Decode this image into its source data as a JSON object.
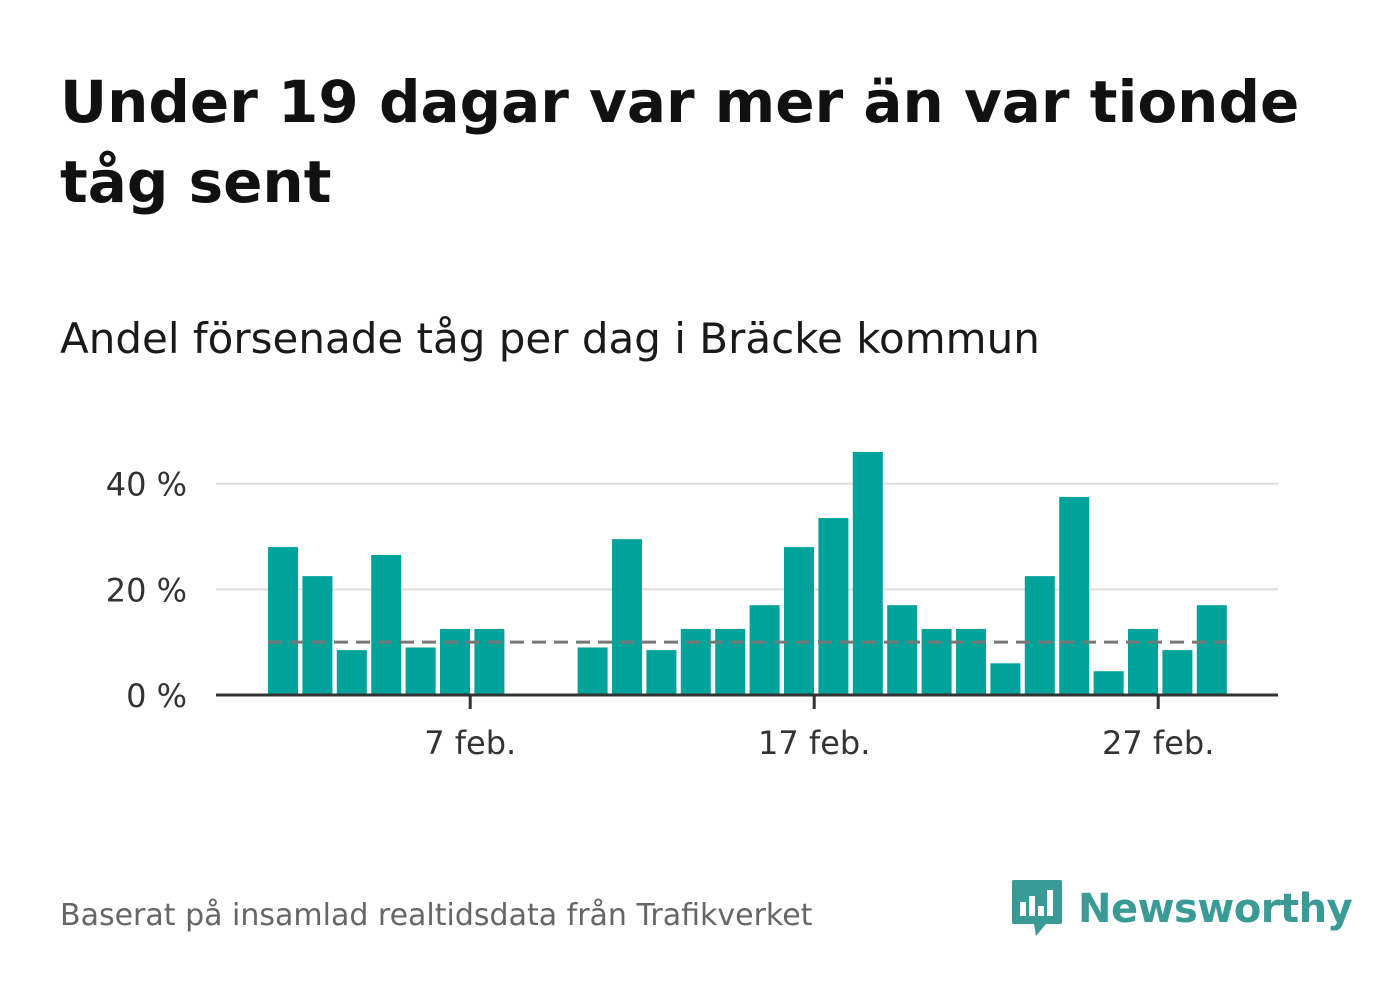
{
  "header": {
    "title": "Under 19 dagar var mer än var tionde tåg sent",
    "subtitle": "Andel försenade tåg per dag i Bräcke kommun"
  },
  "footer": {
    "source": "Baserat på insamlad realtidsdata från Trafikverket",
    "brand": "Newsworthy"
  },
  "colors": {
    "bar": "#00a39a",
    "threshold": "#777777",
    "grid": "#dddddd",
    "axis": "#333333",
    "brand": "#3a9a96"
  },
  "chart_data": {
    "type": "bar",
    "categories": [
      "2024-02-01",
      "2024-02-02",
      "2024-02-03",
      "2024-02-04",
      "2024-02-05",
      "2024-02-06",
      "2024-02-07",
      "2024-02-08",
      "2024-02-09",
      "2024-02-10",
      "2024-02-11",
      "2024-02-12",
      "2024-02-13",
      "2024-02-14",
      "2024-02-15",
      "2024-02-16",
      "2024-02-17",
      "2024-02-18",
      "2024-02-19",
      "2024-02-20",
      "2024-02-21",
      "2024-02-22",
      "2024-02-23",
      "2024-02-24",
      "2024-02-25",
      "2024-02-26",
      "2024-02-27",
      "2024-02-28"
    ],
    "values": [
      28,
      22.5,
      8.5,
      26.5,
      9,
      12.5,
      12.5,
      0,
      0,
      9,
      29.5,
      8.5,
      12.5,
      12.5,
      17,
      28,
      33.5,
      46,
      17,
      12.5,
      12.5,
      6,
      22.5,
      37.5,
      4.5,
      12.5,
      8.5,
      17
    ],
    "threshold": 10,
    "ylim": [
      0,
      46
    ],
    "yticks": [
      0,
      20,
      40
    ],
    "ytick_labels": [
      "0 %",
      "20 %",
      "40 %"
    ],
    "xticks": [
      {
        "category": "2024-02-07",
        "label": "7 feb."
      },
      {
        "category": "2024-02-17",
        "label": "17 feb."
      },
      {
        "category": "2024-02-27",
        "label": "27 feb."
      }
    ],
    "grid": true,
    "legend": "none"
  }
}
